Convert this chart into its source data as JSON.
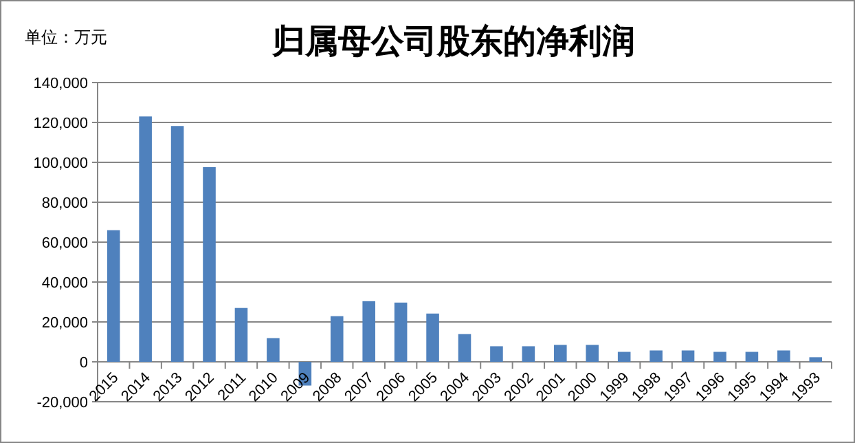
{
  "chart_data": {
    "type": "bar",
    "title": "归属母公司股东的净利润",
    "annotations": [
      "单位：万元"
    ],
    "categories": [
      "2015",
      "2014",
      "2013",
      "2012",
      "2011",
      "2010",
      "2009",
      "2008",
      "2007",
      "2006",
      "2005",
      "2004",
      "2003",
      "2002",
      "2001",
      "2000",
      "1999",
      "1998",
      "1997",
      "1996",
      "1995",
      "1994",
      "1993"
    ],
    "values": [
      66000,
      123000,
      118200,
      97600,
      27000,
      11900,
      -11900,
      22900,
      30400,
      29700,
      24200,
      13900,
      7800,
      7800,
      8500,
      8500,
      5000,
      5700,
      5700,
      5000,
      5000,
      5700,
      2300
    ],
    "color": "#4f81bd",
    "ylim": [
      -20000,
      140000
    ],
    "yticks": [
      {
        "value": -20000,
        "label": "-20,000"
      },
      {
        "value": 0,
        "label": "0"
      },
      {
        "value": 20000,
        "label": "20,000"
      },
      {
        "value": 40000,
        "label": "40,000"
      },
      {
        "value": 60000,
        "label": "60,000"
      },
      {
        "value": 80000,
        "label": "80,000"
      },
      {
        "value": 100000,
        "label": "100,000"
      },
      {
        "value": 120000,
        "label": "120,000"
      },
      {
        "value": 140000,
        "label": "140,000"
      }
    ],
    "grid": "y"
  }
}
